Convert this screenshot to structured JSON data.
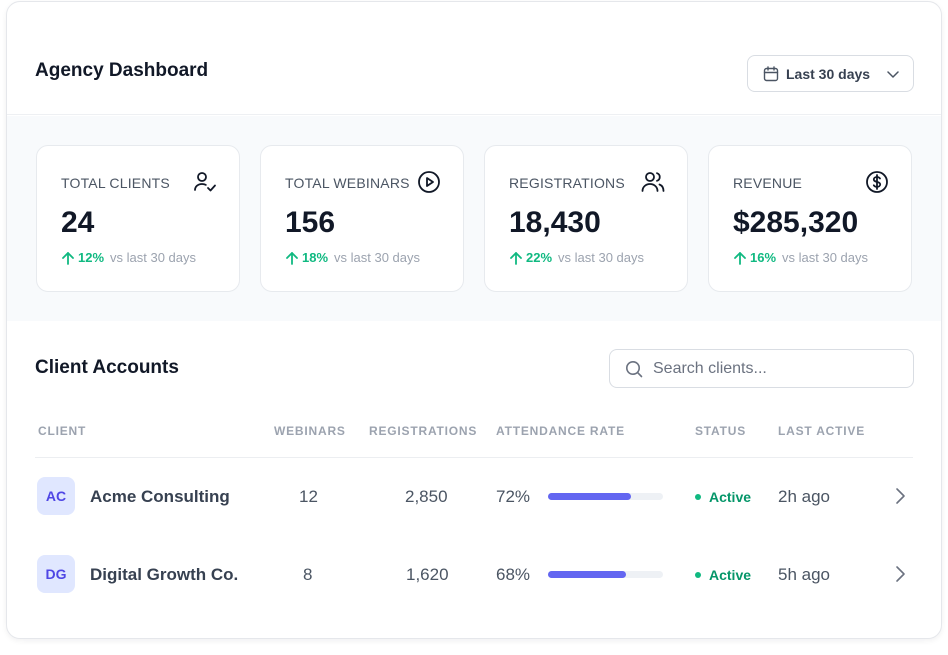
{
  "header": {
    "title": "Agency Dashboard",
    "date_range": "Last 30 days"
  },
  "stats": [
    {
      "label": "TOTAL CLIENTS",
      "value": "24",
      "delta": "12%",
      "comparison": "vs last 30 days",
      "icon": "user-check-icon"
    },
    {
      "label": "TOTAL WEBINARS",
      "value": "156",
      "delta": "18%",
      "comparison": "vs last 30 days",
      "icon": "play-circle-icon"
    },
    {
      "label": "REGISTRATIONS",
      "value": "18,430",
      "delta": "22%",
      "comparison": "vs last 30 days",
      "icon": "users-icon"
    },
    {
      "label": "REVENUE",
      "value": "$285,320",
      "delta": "16%",
      "comparison": "vs last 30 days",
      "icon": "dollar-circle-icon"
    }
  ],
  "clients": {
    "title": "Client Accounts",
    "search_placeholder": "Search clients...",
    "columns": [
      "CLIENT",
      "WEBINARS",
      "REGISTRATIONS",
      "ATTENDANCE RATE",
      "STATUS",
      "LAST ACTIVE"
    ],
    "rows": [
      {
        "initials": "AC",
        "name": "Acme Consulting",
        "webinars": "12",
        "registrations": "2,850",
        "attendance": "72%",
        "attendance_value": 0.72,
        "status": "Active",
        "last_active": "2h ago"
      },
      {
        "initials": "DG",
        "name": "Digital Growth Co.",
        "webinars": "8",
        "registrations": "1,620",
        "attendance": "68%",
        "attendance_value": 0.68,
        "status": "Active",
        "last_active": "5h ago"
      }
    ]
  },
  "colors": {
    "accent": "#6366f1",
    "positive": "#10b981",
    "status_active": "#059669",
    "avatar_bg": "#e0e7ff"
  }
}
